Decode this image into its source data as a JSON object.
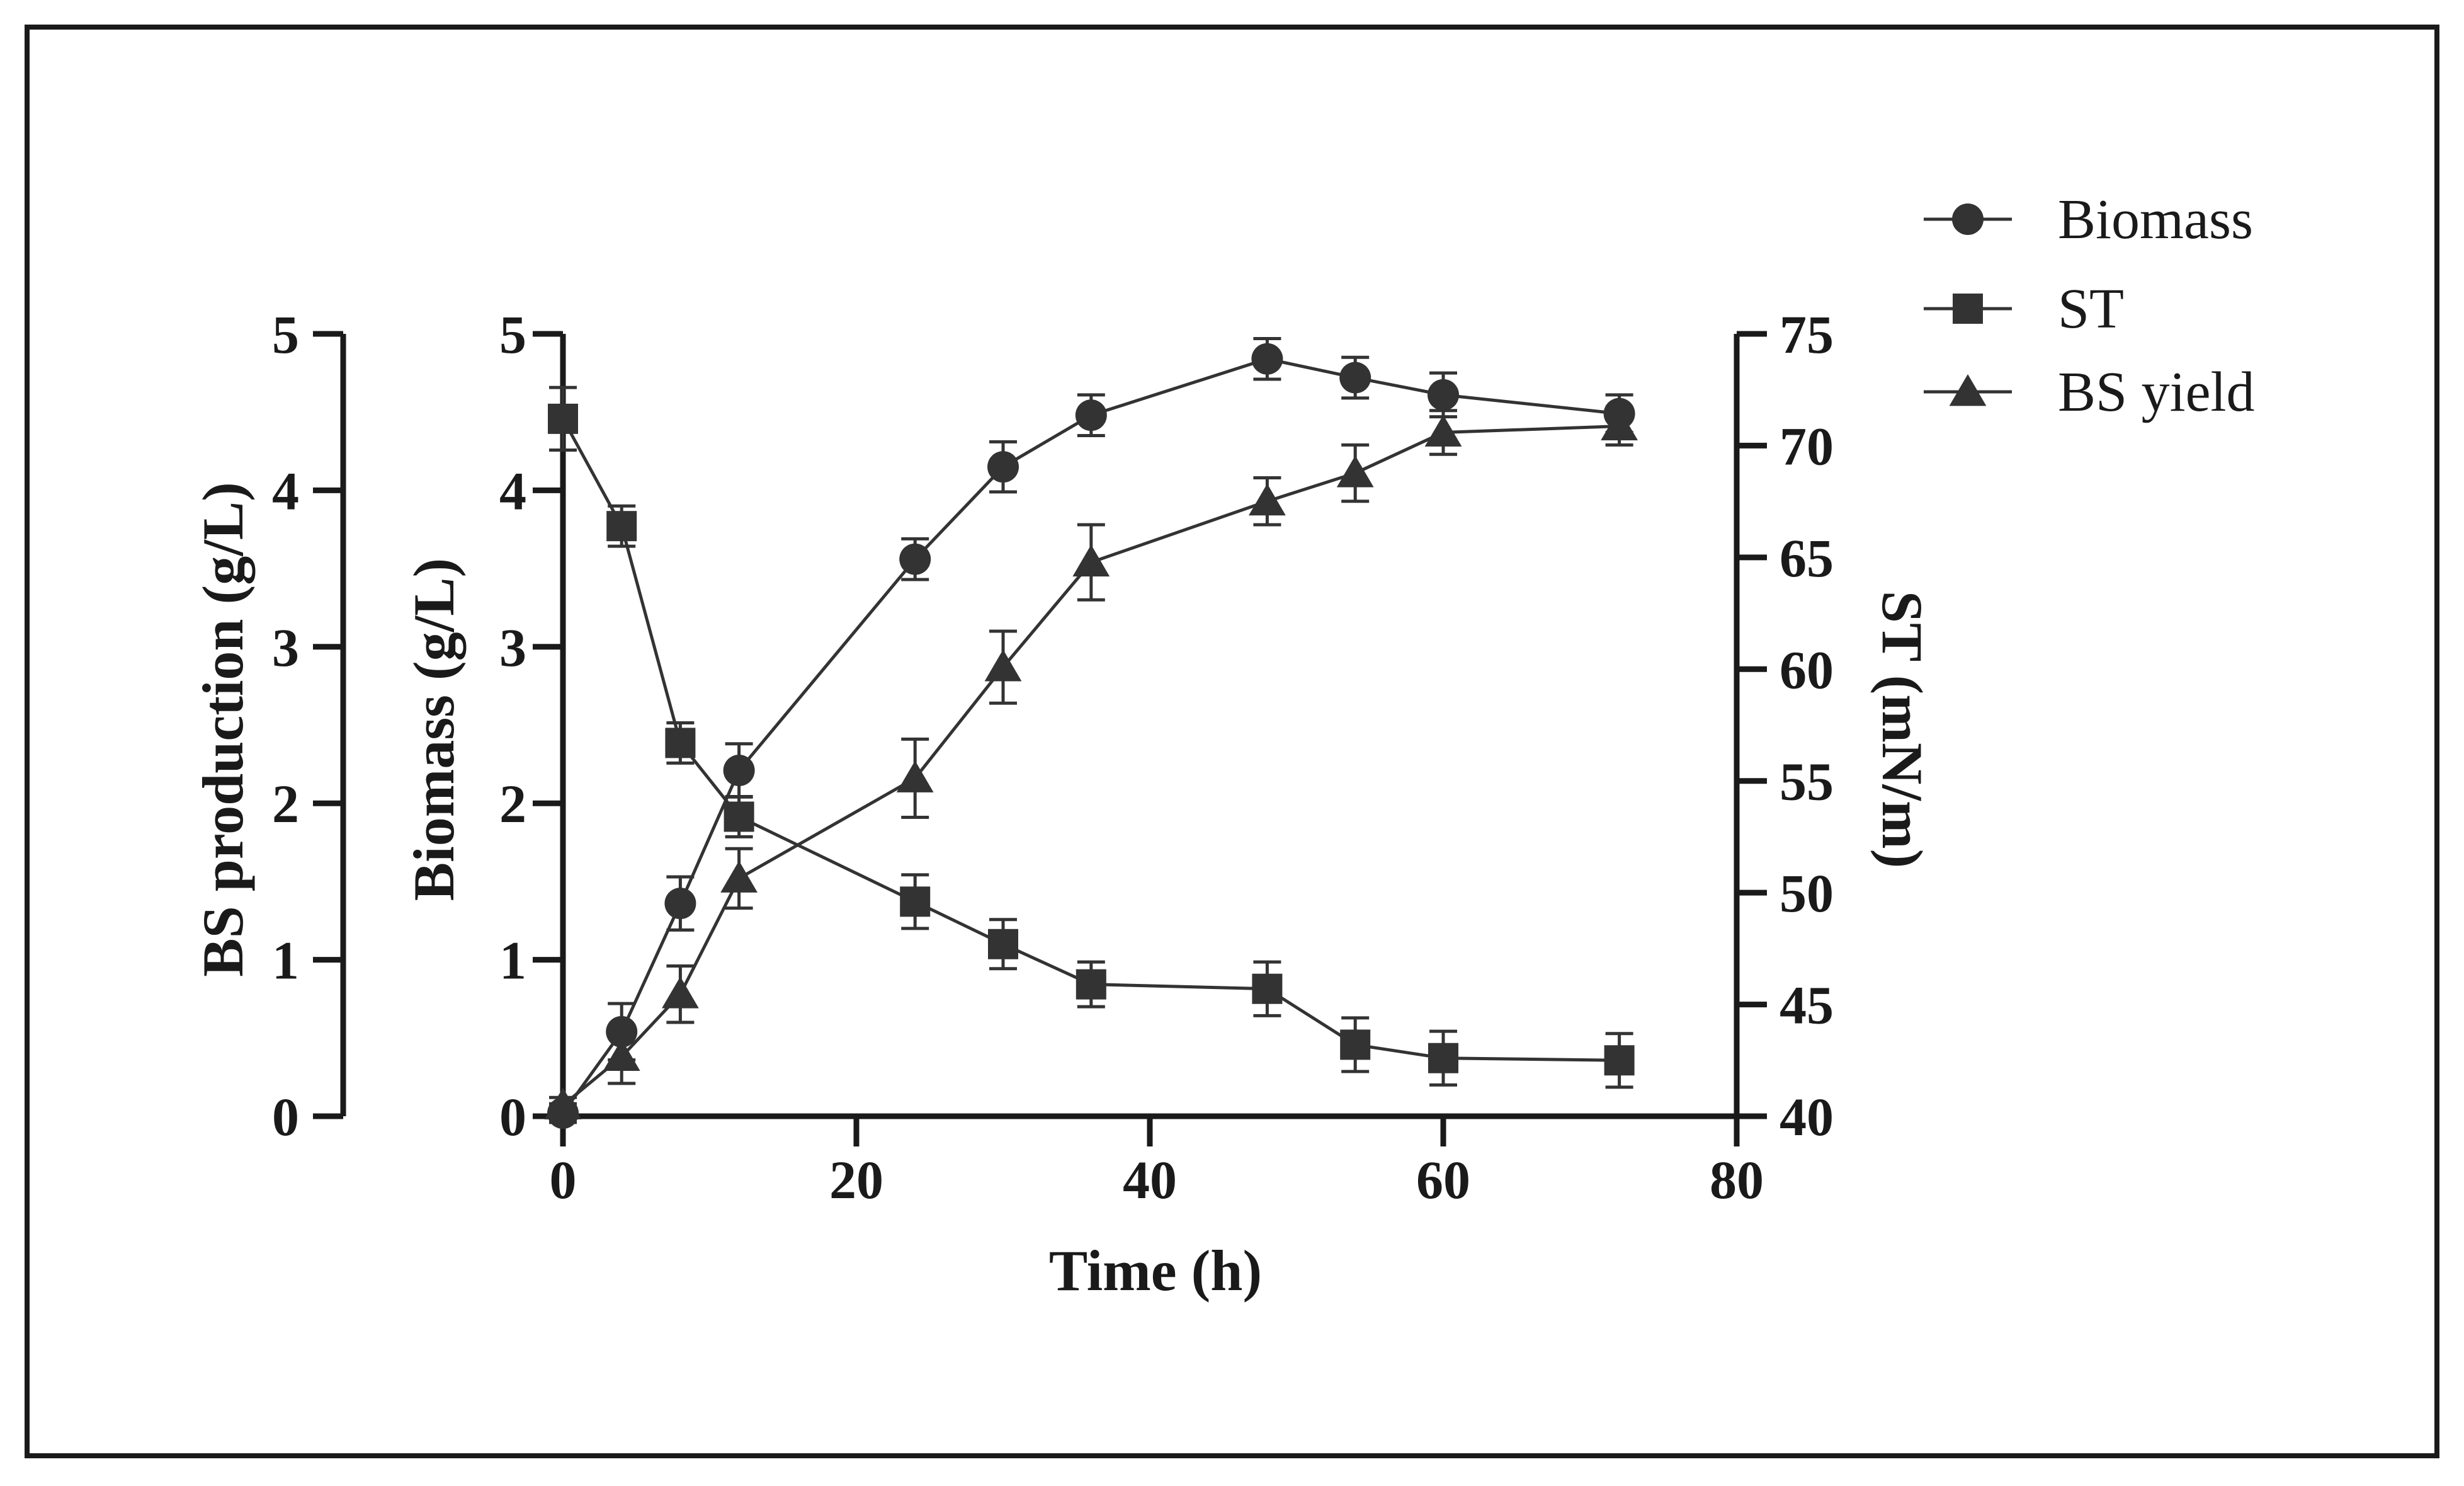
{
  "chart_data": {
    "type": "line",
    "xlabel": "Time (h)",
    "x_ticks": [
      "0",
      "20",
      "40",
      "60",
      "80"
    ],
    "xlim": [
      0,
      80
    ],
    "axes": {
      "bs_production": {
        "label": "BS production (g/L)",
        "ticks": [
          "0",
          "1",
          "2",
          "3",
          "4",
          "5"
        ],
        "range": [
          0,
          5
        ]
      },
      "biomass": {
        "label": "Biomass (g/L)",
        "ticks": [
          "0",
          "1",
          "2",
          "3",
          "4",
          "5"
        ],
        "range": [
          0,
          5
        ]
      },
      "st": {
        "label": "ST (mN/m)",
        "ticks": [
          "40",
          "45",
          "50",
          "55",
          "60",
          "65",
          "70",
          "75"
        ],
        "range": [
          40,
          75
        ]
      }
    },
    "legend": [
      "Biomass",
      "ST",
      "BS yield"
    ],
    "legend_position": "top-right",
    "series": [
      {
        "name": "Biomass",
        "marker": "circle",
        "axis": "biomass",
        "x": [
          0,
          4,
          8,
          12,
          24,
          30,
          36,
          48,
          54,
          60,
          72
        ],
        "y": [
          0.02,
          0.54,
          1.36,
          2.21,
          3.56,
          4.15,
          4.48,
          4.84,
          4.72,
          4.61,
          4.49
        ],
        "err": [
          0.06,
          0.18,
          0.17,
          0.17,
          0.13,
          0.16,
          0.13,
          0.13,
          0.13,
          0.14,
          0.12
        ]
      },
      {
        "name": "ST",
        "marker": "square",
        "axis": "st",
        "x": [
          0,
          4,
          8,
          12,
          24,
          30,
          36,
          48,
          54,
          60,
          72
        ],
        "y": [
          71.2,
          66.4,
          56.7,
          53.4,
          49.6,
          47.7,
          45.9,
          45.7,
          43.2,
          42.6,
          42.5
        ],
        "err": [
          1.4,
          0.9,
          0.9,
          0.9,
          1.2,
          1.1,
          1.0,
          1.2,
          1.2,
          1.2,
          1.2
        ]
      },
      {
        "name": "BS yield",
        "marker": "triangle",
        "axis": "bs_production",
        "x": [
          0,
          4,
          8,
          12,
          24,
          30,
          36,
          48,
          54,
          60,
          72
        ],
        "y": [
          0.07,
          0.38,
          0.78,
          1.52,
          2.16,
          2.87,
          3.54,
          3.93,
          4.11,
          4.37,
          4.41
        ],
        "err": [
          0.05,
          0.17,
          0.18,
          0.19,
          0.25,
          0.23,
          0.24,
          0.15,
          0.18,
          0.14,
          0.12
        ]
      }
    ]
  }
}
